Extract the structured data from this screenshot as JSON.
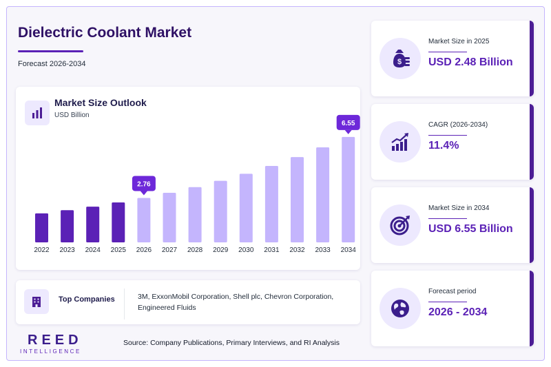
{
  "header": {
    "title": "Dielectric Coolant Market",
    "subtitle": "Forecast 2026-2034"
  },
  "chart_panel": {
    "title": "Market Size Outlook",
    "unit": "USD Billion",
    "icon": "bar-chart-icon"
  },
  "chart_data": {
    "type": "bar",
    "title": "Market Size Outlook",
    "ylabel": "USD Billion",
    "categories": [
      "2022",
      "2023",
      "2024",
      "2025",
      "2026",
      "2027",
      "2028",
      "2029",
      "2030",
      "2031",
      "2032",
      "2033",
      "2034"
    ],
    "values": [
      1.8,
      2.0,
      2.22,
      2.48,
      2.76,
      3.08,
      3.43,
      3.82,
      4.26,
      4.75,
      5.3,
      5.9,
      6.55
    ],
    "historical_count": 4,
    "callouts": [
      {
        "category": "2026",
        "label": "2.76"
      },
      {
        "category": "2034",
        "label": "6.55"
      }
    ],
    "ylim": [
      0,
      7.1
    ],
    "grid": false,
    "colors": {
      "historical": "#5b21b6",
      "forecast": "#c4b5fd",
      "callout": "#6d28d9"
    }
  },
  "companies": {
    "label": "Top Companies",
    "list": "3M, ExxonMobil Corporation, Shell plc, Chevron Corporation, Engineered Fluids",
    "icon": "building-icon"
  },
  "logo": {
    "main": "REED",
    "sub": "INTELLIGENCE"
  },
  "source": "Source: Company Publications, Primary Interviews, and RI Analysis",
  "stats": [
    {
      "label": "Market Size in 2025",
      "value": "USD 2.48 Billion",
      "icon": "money-bag-icon"
    },
    {
      "label": "CAGR (2026-2034)",
      "value": "11.4%",
      "icon": "growth-chart-icon"
    },
    {
      "label": "Market Size in 2034",
      "value": "USD 6.55 Billion",
      "icon": "target-icon"
    },
    {
      "label": "Forecast period",
      "value": "2026 - 2034",
      "icon": "globe-icon"
    }
  ]
}
